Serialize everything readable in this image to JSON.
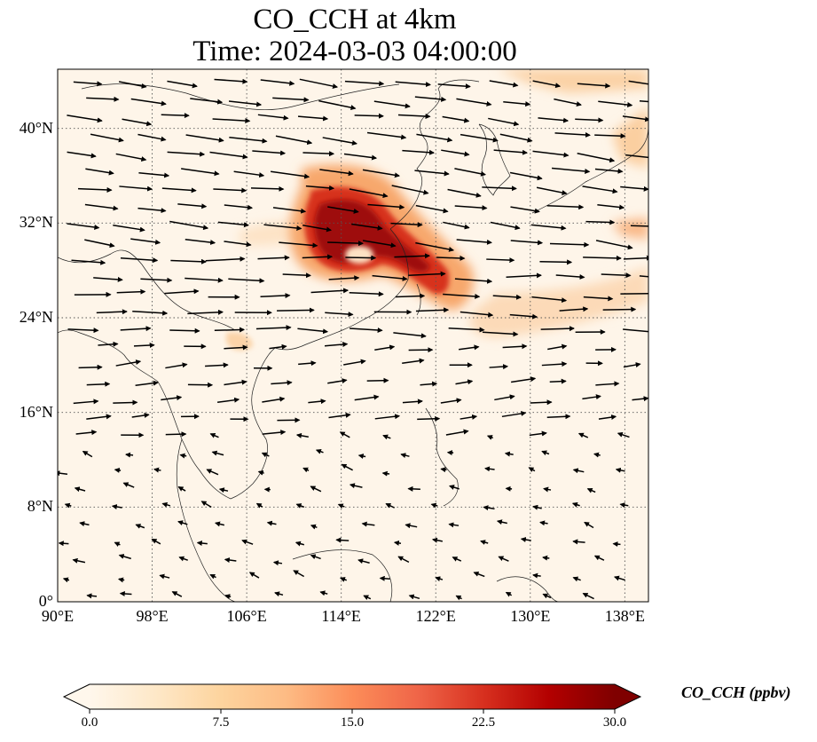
{
  "title": {
    "line1": "CO_CCH at 4km",
    "line2": "Time: 2024-03-03 04:00:00"
  },
  "map": {
    "projection": "PlateCarree",
    "lon_range": [
      90,
      140
    ],
    "lat_range": [
      0,
      45
    ],
    "gridlines": "dotted",
    "lon_ticks": [
      {
        "value": 90,
        "label": "90°E"
      },
      {
        "value": 98,
        "label": "98°E"
      },
      {
        "value": 106,
        "label": "106°E"
      },
      {
        "value": 114,
        "label": "114°E"
      },
      {
        "value": 122,
        "label": "122°E"
      },
      {
        "value": 130,
        "label": "130°E"
      },
      {
        "value": 138,
        "label": "138°E"
      }
    ],
    "lat_ticks": [
      {
        "value": 0,
        "label": "0°"
      },
      {
        "value": 8,
        "label": "8°N"
      },
      {
        "value": 16,
        "label": "16°N"
      },
      {
        "value": 24,
        "label": "24°N"
      },
      {
        "value": 32,
        "label": "32°N"
      },
      {
        "value": 40,
        "label": "40°N"
      }
    ],
    "field_name": "CO_CCH",
    "background_color": "#fef5e9",
    "high_concentration_region_center": {
      "lon": 115,
      "lat": 30.5
    },
    "wind_vectors": "shown as black arrows"
  },
  "colorbar": {
    "label": "CO_CCH (ppbv)",
    "min": 0.0,
    "max": 30.0,
    "extend": "both",
    "colormap": "OrRd",
    "colors": [
      "#fff7ec",
      "#fee8c8",
      "#fdd49e",
      "#fdbb84",
      "#fc8d59",
      "#ef6548",
      "#d7301f",
      "#b30000",
      "#7f0000"
    ],
    "ticks": [
      {
        "value": 0.0,
        "label": "0.0"
      },
      {
        "value": 7.5,
        "label": "7.5"
      },
      {
        "value": 15.0,
        "label": "15.0"
      },
      {
        "value": 22.5,
        "label": "22.5"
      },
      {
        "value": 30.0,
        "label": "30.0"
      }
    ]
  }
}
